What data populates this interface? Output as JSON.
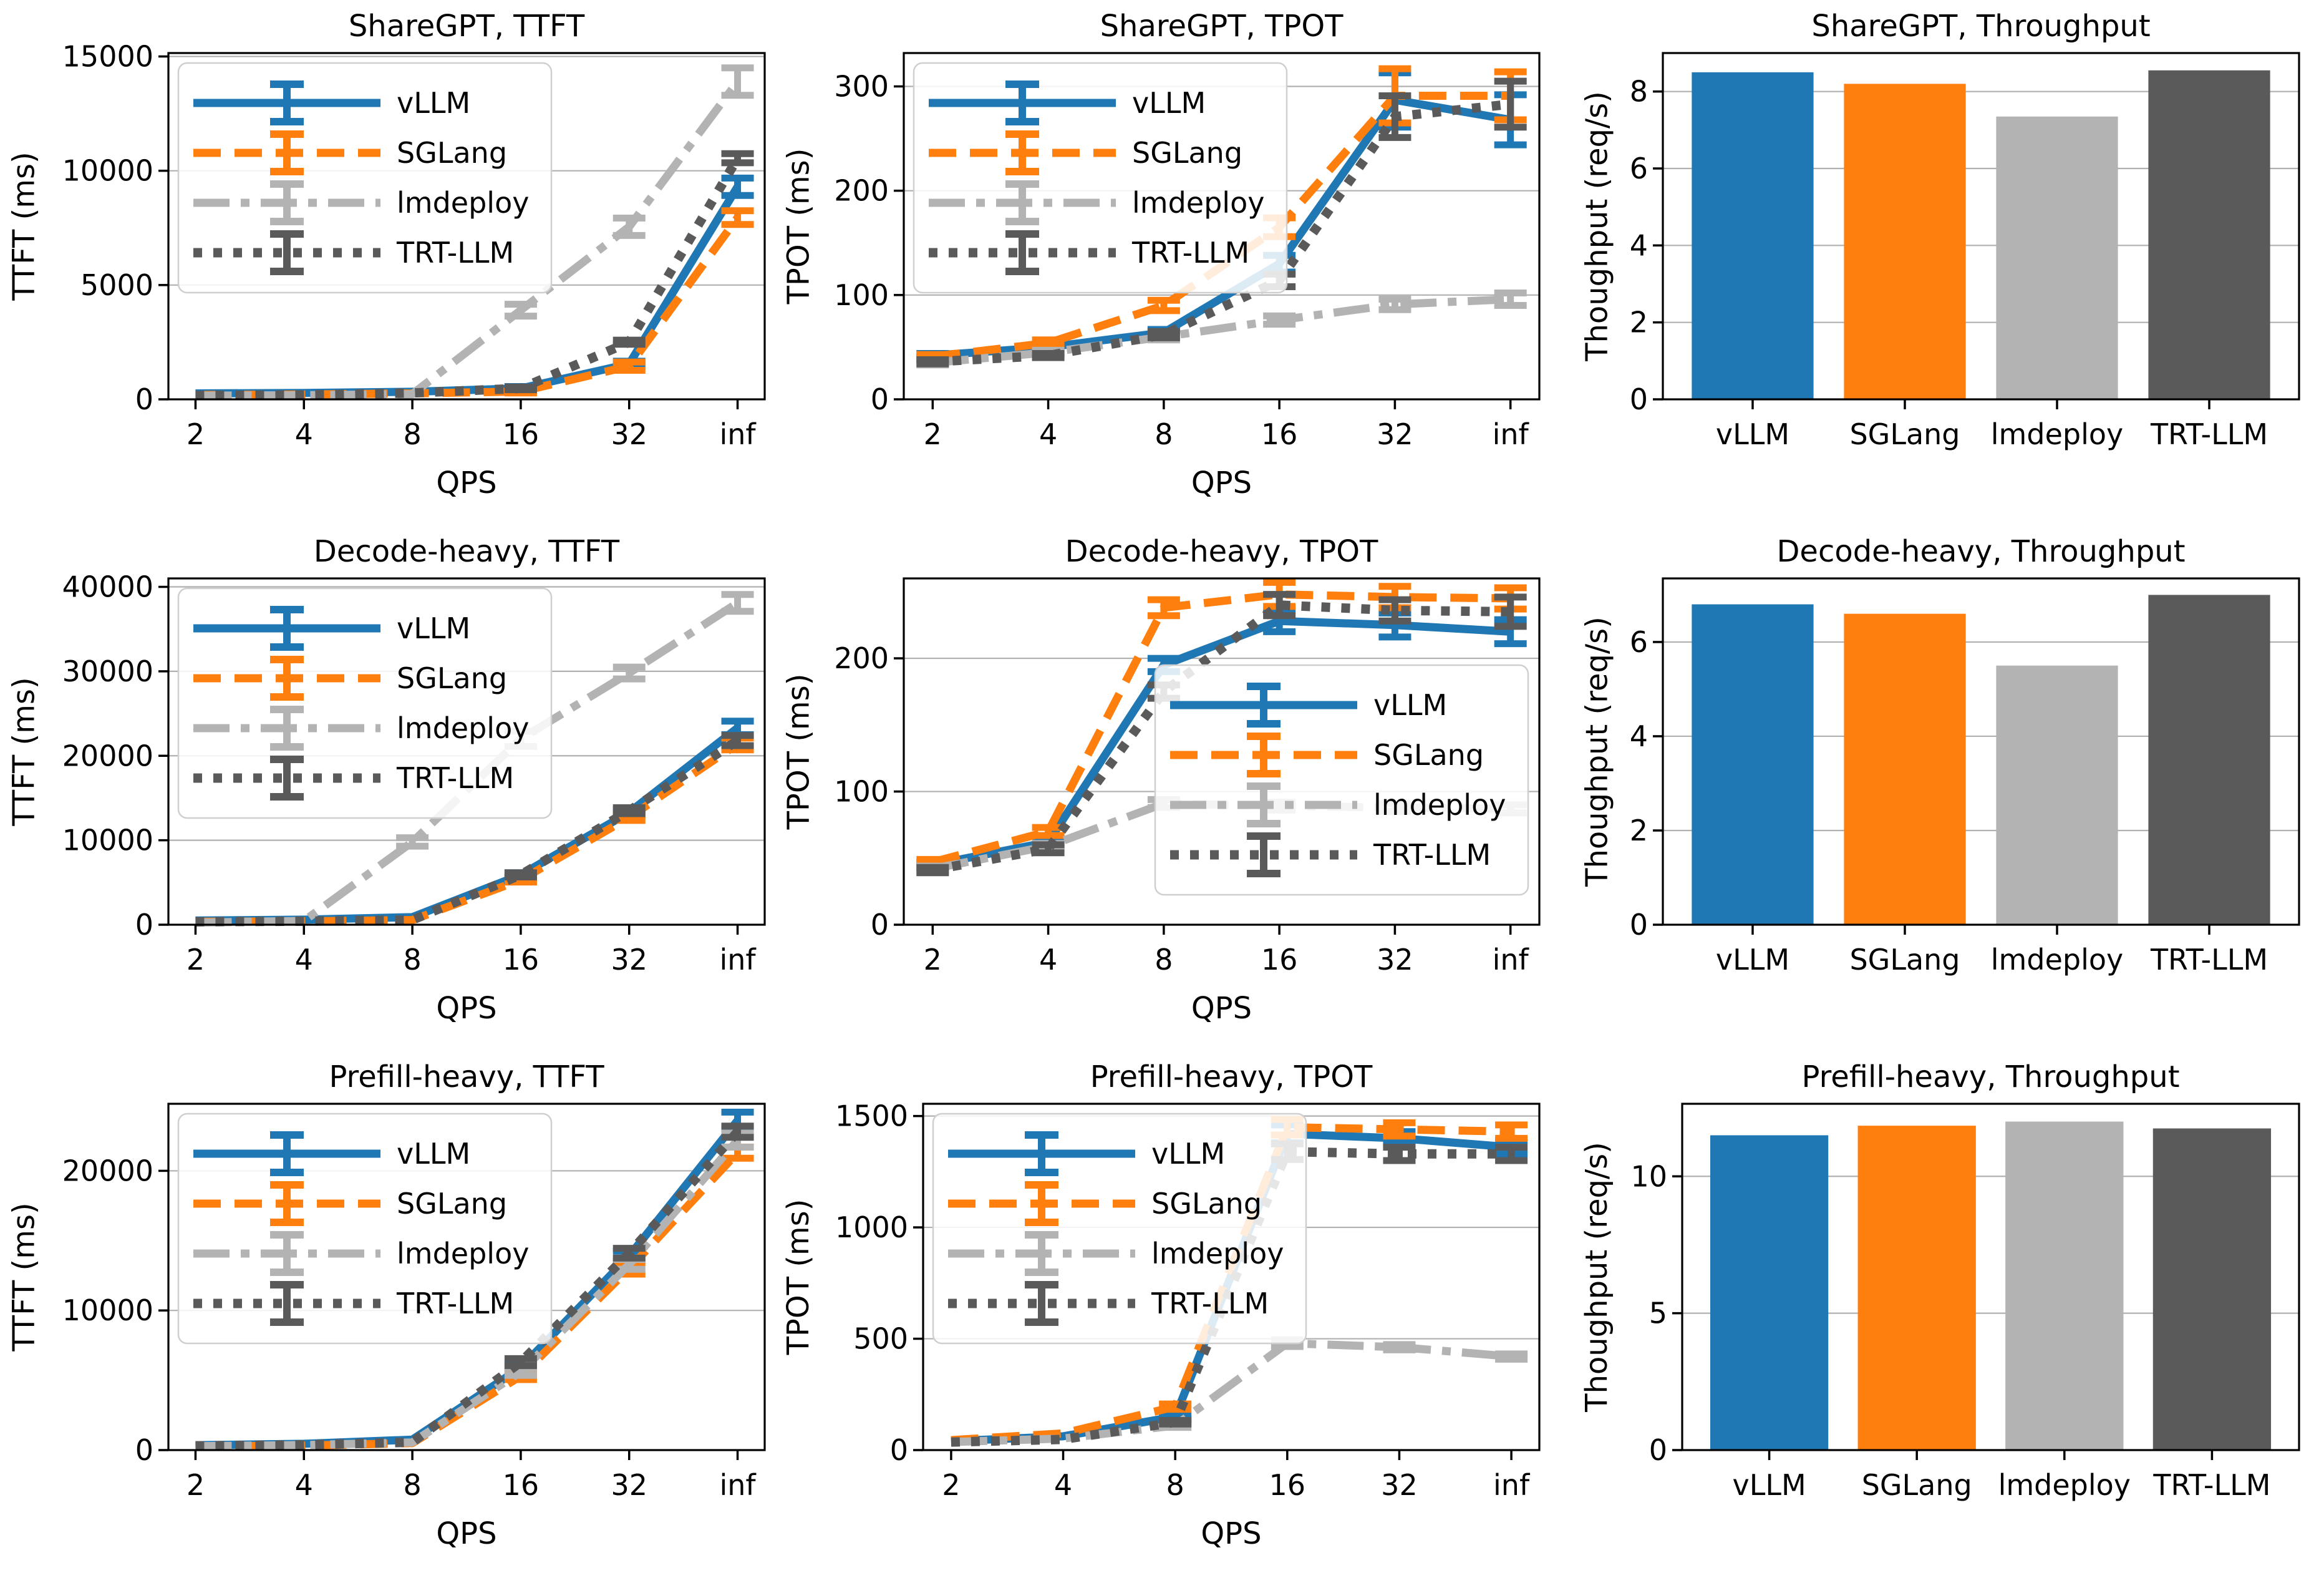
{
  "figure": {
    "background": "#ffffff",
    "rows": [
      "ShareGPT",
      "Decode-heavy",
      "Prefill-heavy"
    ],
    "metrics": [
      "TTFT",
      "TPOT",
      "Throughput"
    ]
  },
  "series_styles": [
    {
      "name": "vLLM",
      "color": "#1f77b4",
      "dash": "solid"
    },
    {
      "name": "SGLang",
      "color": "#ff7f0e",
      "dash": "dashed"
    },
    {
      "name": "lmdeploy",
      "color": "#b3b3b3",
      "dash": "dashdot"
    },
    {
      "name": "TRT-LLM",
      "color": "#5a5a5a",
      "dash": "dotted"
    }
  ],
  "style_hints": {
    "grid_color": "#b0b0b0",
    "spine_color": "#000000",
    "legend_border": "#cfcfcf",
    "legend_fill": "#ffffff"
  },
  "chart_data": [
    {
      "id": "sharegpt-ttft",
      "type": "line",
      "title": "ShareGPT, TTFT",
      "xlabel": "QPS",
      "ylabel": "TTFT (ms)",
      "x_categories": [
        "2",
        "4",
        "8",
        "16",
        "32",
        "inf"
      ],
      "yticks": [
        0,
        5000,
        10000,
        15000
      ],
      "ylim": [
        0,
        15150
      ],
      "grid": true,
      "legend_loc": "upper-left",
      "series": [
        {
          "name": "vLLM",
          "values": [
            260,
            280,
            330,
            480,
            1550,
            9300
          ],
          "errors": [
            40,
            40,
            50,
            80,
            120,
            380
          ]
        },
        {
          "name": "SGLang",
          "values": [
            190,
            210,
            260,
            340,
            1450,
            7950
          ],
          "errors": [
            30,
            30,
            40,
            60,
            180,
            300
          ]
        },
        {
          "name": "lmdeploy",
          "values": [
            160,
            180,
            230,
            3900,
            7550,
            13900
          ],
          "errors": [
            20,
            25,
            40,
            260,
            380,
            600
          ]
        },
        {
          "name": "TRT-LLM",
          "values": [
            170,
            190,
            280,
            480,
            2500,
            10550
          ],
          "errors": [
            20,
            25,
            40,
            60,
            90,
            200
          ]
        }
      ]
    },
    {
      "id": "sharegpt-tpot",
      "type": "line",
      "title": "ShareGPT, TPOT",
      "xlabel": "QPS",
      "ylabel": "TPOT (ms)",
      "x_categories": [
        "2",
        "4",
        "8",
        "16",
        "32",
        "inf"
      ],
      "yticks": [
        0,
        100,
        200,
        300
      ],
      "ylim": [
        0,
        332
      ],
      "grid": true,
      "legend_loc": "upper-left",
      "series": [
        {
          "name": "vLLM",
          "values": [
            42,
            50,
            64,
            130,
            287,
            268
          ],
          "errors": [
            2,
            2,
            3,
            8,
            26,
            24
          ]
        },
        {
          "name": "SGLang",
          "values": [
            41,
            54,
            90,
            165,
            291,
            291
          ],
          "errors": [
            2,
            3,
            5,
            9,
            26,
            23
          ]
        },
        {
          "name": "lmdeploy",
          "values": [
            35,
            45,
            60,
            76,
            91,
            96
          ],
          "errors": [
            2,
            2,
            3,
            4,
            5,
            6
          ]
        },
        {
          "name": "TRT-LLM",
          "values": [
            36,
            42,
            62,
            114,
            271,
            283
          ],
          "errors": [
            2,
            2,
            3,
            6,
            20,
            22
          ]
        }
      ]
    },
    {
      "id": "sharegpt-throughput",
      "type": "bar",
      "title": "ShareGPT, Throughput",
      "ylabel": "Thoughput (req/s)",
      "categories": [
        "vLLM",
        "SGLang",
        "lmdeploy",
        "TRT-LLM"
      ],
      "values": [
        8.5,
        8.2,
        7.35,
        8.55
      ],
      "yticks": [
        0,
        2,
        4,
        6,
        8
      ],
      "ylim": [
        0,
        9.0
      ],
      "grid": true
    },
    {
      "id": "decode-heavy-ttft",
      "type": "line",
      "title": "Decode-heavy, TTFT",
      "xlabel": "QPS",
      "ylabel": "TTFT (ms)",
      "x_categories": [
        "2",
        "4",
        "8",
        "16",
        "32",
        "inf"
      ],
      "yticks": [
        0,
        10000,
        20000,
        30000,
        40000
      ],
      "ylim": [
        0,
        41000
      ],
      "grid": true,
      "legend_loc": "upper-left",
      "series": [
        {
          "name": "vLLM",
          "values": [
            500,
            600,
            900,
            5900,
            13300,
            23300
          ],
          "errors": [
            60,
            60,
            90,
            250,
            350,
            800
          ]
        },
        {
          "name": "SGLang",
          "values": [
            350,
            400,
            550,
            5300,
            12700,
            21400
          ],
          "errors": [
            40,
            50,
            70,
            250,
            350,
            700
          ]
        },
        {
          "name": "lmdeploy",
          "values": [
            250,
            450,
            9800,
            22000,
            29800,
            38100
          ],
          "errors": [
            30,
            60,
            500,
            900,
            700,
            1000
          ]
        },
        {
          "name": "TRT-LLM",
          "values": [
            350,
            420,
            560,
            5900,
            13500,
            21800
          ],
          "errors": [
            40,
            50,
            70,
            250,
            350,
            600
          ]
        }
      ]
    },
    {
      "id": "decode-heavy-tpot",
      "type": "line",
      "title": "Decode-heavy, TPOT",
      "xlabel": "QPS",
      "ylabel": "TPOT (ms)",
      "x_categories": [
        "2",
        "4",
        "8",
        "16",
        "32",
        "inf"
      ],
      "yticks": [
        0,
        100,
        200
      ],
      "ylim": [
        0,
        260
      ],
      "grid": true,
      "legend_loc": "lower-right",
      "series": [
        {
          "name": "vLLM",
          "values": [
            45,
            62,
            195,
            228,
            225,
            220
          ],
          "errors": [
            2,
            3,
            5,
            8,
            9,
            9
          ]
        },
        {
          "name": "SGLang",
          "values": [
            47,
            70,
            238,
            248,
            246,
            245
          ],
          "errors": [
            2,
            3,
            6,
            9,
            8,
            8
          ]
        },
        {
          "name": "lmdeploy",
          "values": [
            42,
            59,
            91,
            89,
            88,
            87
          ],
          "errors": [
            2,
            2,
            3,
            3,
            3,
            3
          ]
        },
        {
          "name": "TRT-LLM",
          "values": [
            41,
            57,
            175,
            240,
            236,
            235
          ],
          "errors": [
            2,
            3,
            5,
            8,
            8,
            11
          ]
        }
      ]
    },
    {
      "id": "decode-heavy-throughput",
      "type": "bar",
      "title": "Decode-heavy, Throughput",
      "ylabel": "Thoughput (req/s)",
      "categories": [
        "vLLM",
        "SGLang",
        "lmdeploy",
        "TRT-LLM"
      ],
      "values": [
        6.8,
        6.6,
        5.5,
        7.0
      ],
      "yticks": [
        0,
        2,
        4,
        6
      ],
      "ylim": [
        0,
        7.35
      ],
      "grid": true
    },
    {
      "id": "prefill-heavy-ttft",
      "type": "line",
      "title": "Prefill-heavy, TTFT",
      "xlabel": "QPS",
      "ylabel": "TTFT (ms)",
      "x_categories": [
        "2",
        "4",
        "8",
        "16",
        "32",
        "inf"
      ],
      "yticks": [
        0,
        10000,
        20000
      ],
      "ylim": [
        0,
        24800
      ],
      "grid": true,
      "legend_loc": "upper-left",
      "series": [
        {
          "name": "vLLM",
          "values": [
            350,
            450,
            750,
            5900,
            13900,
            23600
          ],
          "errors": [
            40,
            50,
            80,
            250,
            350,
            600
          ]
        },
        {
          "name": "SGLang",
          "values": [
            250,
            320,
            500,
            5300,
            13000,
            21300
          ],
          "errors": [
            30,
            40,
            60,
            250,
            400,
            400
          ]
        },
        {
          "name": "lmdeploy",
          "values": [
            280,
            360,
            550,
            5600,
            13300,
            22200
          ],
          "errors": [
            30,
            40,
            60,
            250,
            350,
            500
          ]
        },
        {
          "name": "TRT-LLM",
          "values": [
            300,
            380,
            560,
            6300,
            14100,
            22800
          ],
          "errors": [
            30,
            40,
            60,
            250,
            350,
            400
          ]
        }
      ]
    },
    {
      "id": "prefill-heavy-tpot",
      "type": "line",
      "title": "Prefill-heavy, TPOT",
      "xlabel": "QPS",
      "ylabel": "TPOT (ms)",
      "x_categories": [
        "2",
        "4",
        "8",
        "16",
        "32",
        "inf"
      ],
      "yticks": [
        0,
        500,
        1000,
        1500
      ],
      "ylim": [
        0,
        1555
      ],
      "grid": true,
      "legend_loc": "upper-left",
      "series": [
        {
          "name": "vLLM",
          "values": [
            40,
            62,
            150,
            1420,
            1400,
            1360
          ],
          "errors": [
            3,
            4,
            10,
            40,
            30,
            30
          ]
        },
        {
          "name": "SGLang",
          "values": [
            45,
            75,
            195,
            1450,
            1440,
            1430
          ],
          "errors": [
            3,
            5,
            12,
            35,
            30,
            30
          ]
        },
        {
          "name": "lmdeploy",
          "values": [
            36,
            52,
            110,
            480,
            462,
            420
          ],
          "errors": [
            2,
            3,
            8,
            15,
            12,
            12
          ]
        },
        {
          "name": "TRT-LLM",
          "values": [
            36,
            48,
            125,
            1340,
            1330,
            1330
          ],
          "errors": [
            2,
            3,
            8,
            35,
            30,
            30
          ]
        }
      ]
    },
    {
      "id": "prefill-heavy-throughput",
      "type": "bar",
      "title": "Prefill-heavy, Throughput",
      "ylabel": "Thoughput (req/s)",
      "categories": [
        "vLLM",
        "SGLang",
        "lmdeploy",
        "TRT-LLM"
      ],
      "values": [
        11.5,
        11.85,
        12.0,
        11.75
      ],
      "yticks": [
        0,
        5,
        10
      ],
      "ylim": [
        0,
        12.65
      ],
      "grid": true
    }
  ]
}
